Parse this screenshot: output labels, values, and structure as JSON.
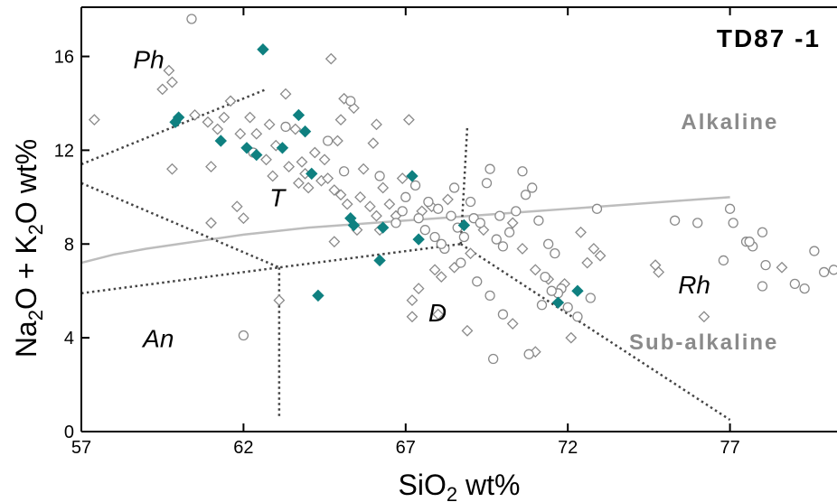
{
  "chart_data": {
    "type": "scatter",
    "title": "",
    "sample_label": "TD87 -1",
    "xlabel": "SiO2 wt%",
    "xlabel_parts": {
      "pre": "SiO",
      "sub": "2",
      "post": " wt%"
    },
    "ylabel": "Na2O + K2O wt%",
    "ylabel_parts": [
      {
        "t": "Na"
      },
      {
        "t": "2",
        "sub": true
      },
      {
        "t": "O + K"
      },
      {
        "t": "2",
        "sub": true
      },
      {
        "t": "O wt%"
      }
    ],
    "xlim": [
      57,
      80.3
    ],
    "ylim": [
      0,
      18.1
    ],
    "xticks": [
      57,
      62,
      67,
      72,
      77
    ],
    "yticks": [
      0,
      4,
      8,
      12,
      16
    ],
    "grid": false,
    "colors": {
      "filled": "#0f8080",
      "open": "#8a8a8a",
      "divider": "#bdbdbd",
      "boundary": "#444444",
      "series_text": "#8a8a8a"
    },
    "field_labels": [
      {
        "text": "Ph",
        "x": 58.6,
        "y": 15.5
      },
      {
        "text": "T",
        "x": 62.8,
        "y": 9.6
      },
      {
        "text": "An",
        "x": 58.9,
        "y": 3.6
      },
      {
        "text": "D",
        "x": 67.7,
        "y": 4.7
      },
      {
        "text": "Rh",
        "x": 75.4,
        "y": 5.9
      }
    ],
    "series_labels": [
      {
        "text": "Alkaline",
        "x": 78.5,
        "y": 12.9
      },
      {
        "text": "Sub-alkaline",
        "x": 78.5,
        "y": 3.5
      }
    ],
    "divider_line": {
      "x": [
        57,
        58,
        59,
        60,
        61,
        62,
        63,
        64,
        65,
        66,
        67,
        68,
        69,
        70,
        71,
        72,
        73,
        74,
        75,
        76,
        77
      ],
      "y": [
        7.2,
        7.55,
        7.8,
        8.0,
        8.2,
        8.4,
        8.55,
        8.7,
        8.8,
        8.9,
        9.0,
        9.1,
        9.2,
        9.3,
        9.4,
        9.5,
        9.6,
        9.7,
        9.8,
        9.9,
        10.0
      ]
    },
    "field_boundaries": [
      {
        "x": [
          57,
          62.7
        ],
        "y": [
          11.4,
          14.6
        ]
      },
      {
        "x": [
          57,
          63.1
        ],
        "y": [
          10.6,
          7.0
        ]
      },
      {
        "x": [
          63.1,
          63.1
        ],
        "y": [
          7.0,
          0.6
        ]
      },
      {
        "x": [
          57,
          63.1,
          68.7
        ],
        "y": [
          5.9,
          7.0,
          8.0
        ]
      },
      {
        "x": [
          68.7,
          68.9
        ],
        "y": [
          8.0,
          13.0
        ]
      },
      {
        "x": [
          68.7,
          77.0
        ],
        "y": [
          8.0,
          0.5
        ]
      }
    ],
    "series": [
      {
        "name": "",
        "marker": "filled-diamond",
        "points": [
          [
            62.6,
            16.3
          ],
          [
            59.9,
            13.2
          ],
          [
            60.0,
            13.4
          ],
          [
            61.3,
            12.4
          ],
          [
            62.1,
            12.1
          ],
          [
            62.4,
            11.8
          ],
          [
            63.2,
            12.1
          ],
          [
            63.7,
            13.5
          ],
          [
            63.9,
            12.8
          ],
          [
            64.1,
            11.0
          ],
          [
            65.3,
            9.1
          ],
          [
            65.4,
            8.8
          ],
          [
            64.3,
            5.8
          ],
          [
            66.2,
            7.3
          ],
          [
            66.3,
            8.7
          ],
          [
            67.2,
            10.9
          ],
          [
            67.4,
            8.2
          ],
          [
            68.8,
            8.8
          ],
          [
            71.7,
            5.5
          ],
          [
            72.3,
            6.0
          ]
        ]
      },
      {
        "name": "",
        "marker": "open-diamond",
        "points": [
          [
            57.4,
            13.3
          ],
          [
            59.5,
            14.6
          ],
          [
            59.7,
            15.4
          ],
          [
            59.8,
            14.9
          ],
          [
            60.5,
            13.5
          ],
          [
            60.9,
            13.2
          ],
          [
            61.2,
            12.9
          ],
          [
            61.4,
            13.4
          ],
          [
            61.6,
            14.1
          ],
          [
            61.9,
            12.7
          ],
          [
            62.2,
            13.4
          ],
          [
            62.4,
            12.7
          ],
          [
            62.8,
            13.1
          ],
          [
            63.3,
            14.4
          ],
          [
            63.6,
            12.9
          ],
          [
            63.0,
            12.2
          ],
          [
            62.7,
            11.6
          ],
          [
            63.4,
            11.3
          ],
          [
            63.8,
            11.5
          ],
          [
            63.9,
            11.0
          ],
          [
            64.2,
            11.9
          ],
          [
            64.5,
            11.6
          ],
          [
            64.4,
            10.7
          ],
          [
            64.0,
            10.4
          ],
          [
            64.6,
            10.8
          ],
          [
            64.8,
            10.3
          ],
          [
            65.0,
            10.1
          ],
          [
            65.2,
            9.7
          ],
          [
            65.6,
            10.0
          ],
          [
            65.9,
            9.6
          ],
          [
            66.1,
            9.2
          ],
          [
            66.5,
            9.7
          ],
          [
            64.9,
            12.4
          ],
          [
            64.7,
            15.9
          ],
          [
            65.1,
            14.2
          ],
          [
            65.4,
            13.8
          ],
          [
            65.0,
            13.3
          ],
          [
            66.1,
            13.1
          ],
          [
            66.0,
            12.3
          ],
          [
            65.7,
            11.2
          ],
          [
            66.3,
            10.4
          ],
          [
            66.9,
            10.8
          ],
          [
            67.1,
            13.3
          ],
          [
            66.7,
            9.2
          ],
          [
            67.5,
            9.4
          ],
          [
            59.8,
            11.2
          ],
          [
            61.0,
            11.3
          ],
          [
            61.0,
            8.9
          ],
          [
            61.8,
            9.6
          ],
          [
            62.0,
            9.1
          ],
          [
            63.1,
            5.6
          ],
          [
            64.8,
            8.1
          ],
          [
            65.5,
            8.6
          ],
          [
            66.2,
            8.6
          ],
          [
            67.2,
            5.6
          ],
          [
            67.2,
            4.9
          ],
          [
            67.9,
            6.9
          ],
          [
            68.1,
            6.6
          ],
          [
            68.5,
            7.0
          ],
          [
            69.0,
            7.6
          ],
          [
            69.4,
            8.6
          ],
          [
            70.3,
            8.9
          ],
          [
            70.6,
            7.8
          ],
          [
            71.0,
            6.9
          ],
          [
            71.4,
            6.5
          ],
          [
            71.9,
            6.3
          ],
          [
            72.4,
            8.5
          ],
          [
            72.8,
            7.8
          ],
          [
            73.0,
            7.5
          ],
          [
            72.6,
            7.2
          ],
          [
            74.7,
            7.1
          ],
          [
            74.8,
            6.8
          ],
          [
            76.2,
            4.9
          ],
          [
            78.6,
            7.0
          ],
          [
            68.0,
            5.0
          ],
          [
            68.9,
            4.3
          ],
          [
            70.3,
            4.6
          ],
          [
            71.0,
            3.4
          ],
          [
            72.1,
            4.0
          ],
          [
            67.4,
            6.1
          ],
          [
            68.3,
            9.9
          ],
          [
            67.8,
            9.6
          ],
          [
            63.7,
            10.6
          ],
          [
            62.9,
            10.9
          ]
        ]
      },
      {
        "name": "",
        "marker": "open-circle",
        "points": [
          [
            60.4,
            17.6
          ],
          [
            62.0,
            4.1
          ],
          [
            62.3,
            11.9
          ],
          [
            63.3,
            13.0
          ],
          [
            64.6,
            12.4
          ],
          [
            65.1,
            11.1
          ],
          [
            65.3,
            14.1
          ],
          [
            66.2,
            10.9
          ],
          [
            67.0,
            10.0
          ],
          [
            67.3,
            10.5
          ],
          [
            67.7,
            9.8
          ],
          [
            68.0,
            9.5
          ],
          [
            68.4,
            9.2
          ],
          [
            68.6,
            8.7
          ],
          [
            68.8,
            8.3
          ],
          [
            69.1,
            9.1
          ],
          [
            69.3,
            8.9
          ],
          [
            69.5,
            10.6
          ],
          [
            69.8,
            8.2
          ],
          [
            70.0,
            7.9
          ],
          [
            70.2,
            8.5
          ],
          [
            70.4,
            9.4
          ],
          [
            70.7,
            10.1
          ],
          [
            70.9,
            10.4
          ],
          [
            71.1,
            9.0
          ],
          [
            71.4,
            8.0
          ],
          [
            71.6,
            7.6
          ],
          [
            71.8,
            6.1
          ],
          [
            72.0,
            5.3
          ],
          [
            72.3,
            4.9
          ],
          [
            72.7,
            5.7
          ],
          [
            69.6,
            11.2
          ],
          [
            70.6,
            11.1
          ],
          [
            68.5,
            10.4
          ],
          [
            69.0,
            9.8
          ],
          [
            69.9,
            9.2
          ],
          [
            67.6,
            8.6
          ],
          [
            67.9,
            8.3
          ],
          [
            68.2,
            7.8
          ],
          [
            68.7,
            7.2
          ],
          [
            69.2,
            6.4
          ],
          [
            69.6,
            5.8
          ],
          [
            70.0,
            5.0
          ],
          [
            69.7,
            3.1
          ],
          [
            70.8,
            3.3
          ],
          [
            67.4,
            9.1
          ],
          [
            68.1,
            8.0
          ],
          [
            71.3,
            6.6
          ],
          [
            71.7,
            5.9
          ],
          [
            66.7,
            8.9
          ],
          [
            66.9,
            9.4
          ],
          [
            72.9,
            9.5
          ],
          [
            75.3,
            9.0
          ],
          [
            76.0,
            8.9
          ],
          [
            77.0,
            9.5
          ],
          [
            76.8,
            7.3
          ],
          [
            77.5,
            8.1
          ],
          [
            77.7,
            7.9
          ],
          [
            78.0,
            8.5
          ],
          [
            78.1,
            7.1
          ],
          [
            78.0,
            6.2
          ],
          [
            79.0,
            6.3
          ],
          [
            79.3,
            6.1
          ],
          [
            79.6,
            7.7
          ],
          [
            79.9,
            6.8
          ],
          [
            80.2,
            6.9
          ],
          [
            77.1,
            8.9
          ],
          [
            77.6,
            8.1
          ],
          [
            71.5,
            6.0
          ],
          [
            71.2,
            5.4
          ]
        ]
      }
    ]
  }
}
